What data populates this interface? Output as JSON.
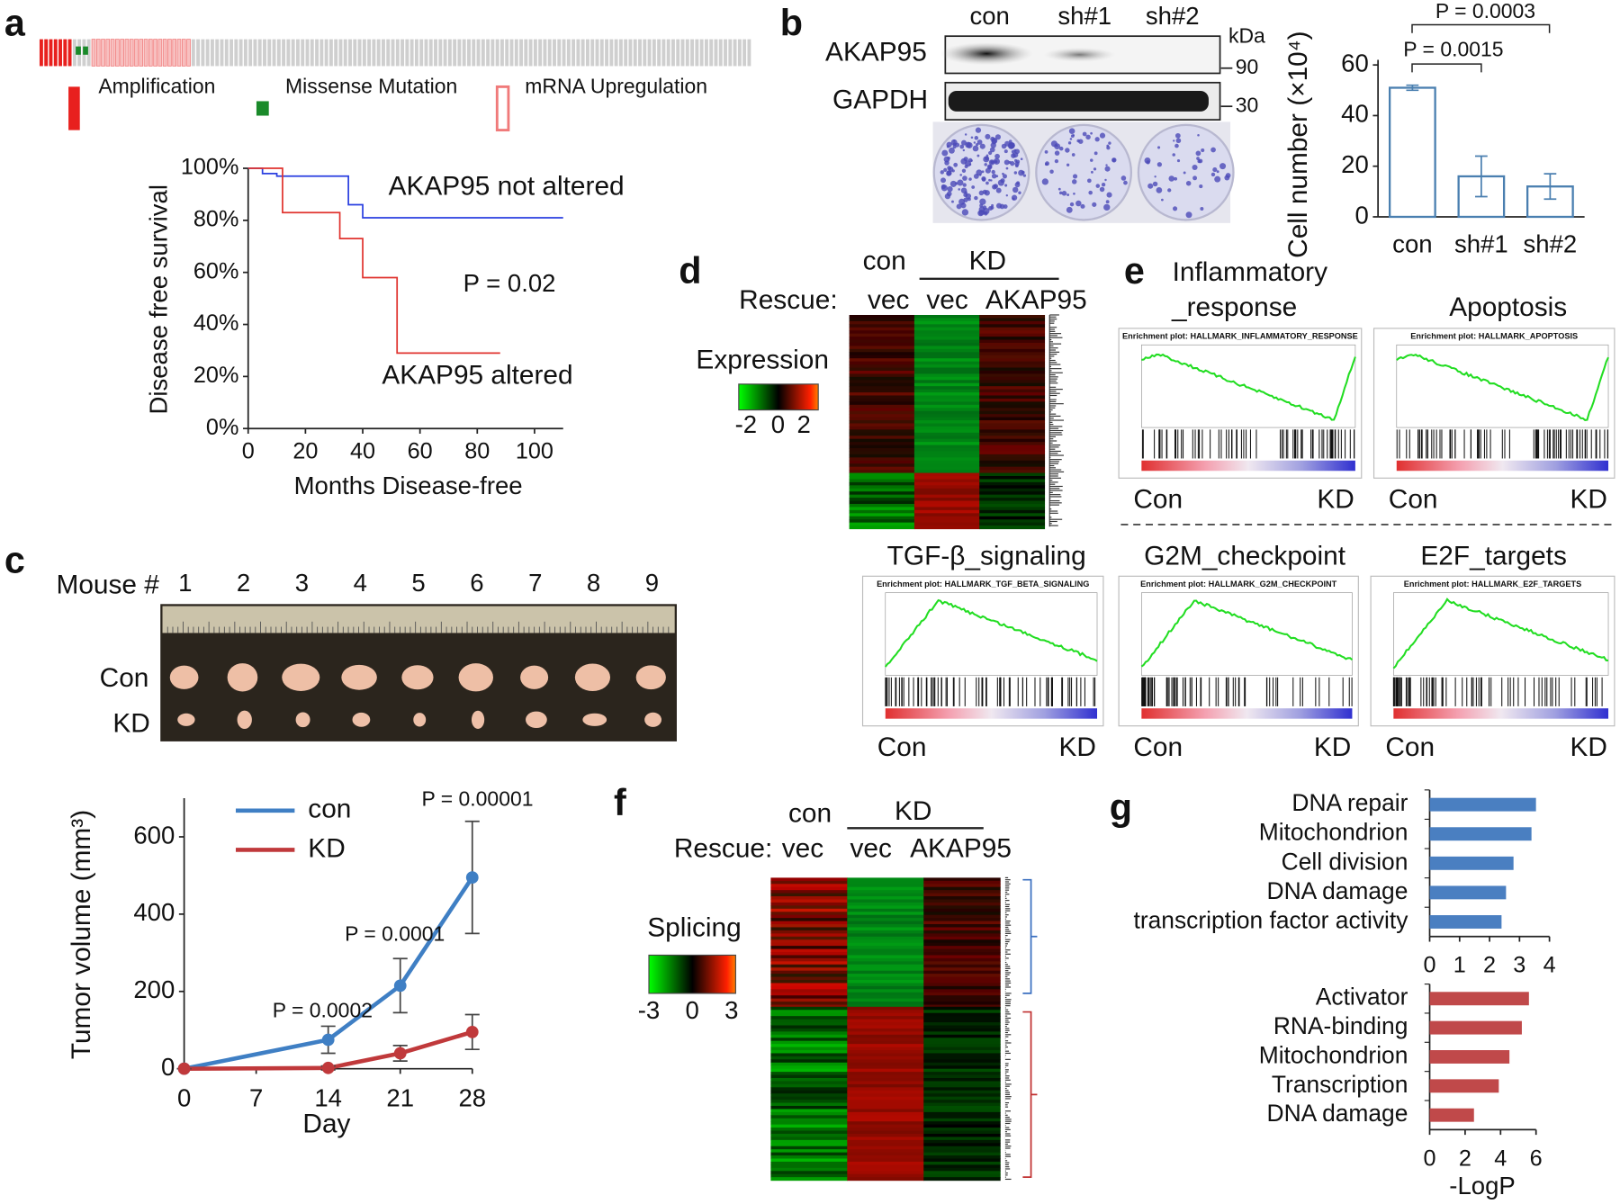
{
  "panel_labels": [
    "a",
    "b",
    "c",
    "d",
    "e",
    "f",
    "g"
  ],
  "panel_a": {
    "legend": [
      "Amplification",
      "Missense Mutation",
      "mRNA Upregulation"
    ]
  },
  "panel_b": {
    "lanes": [
      "con",
      "sh#1",
      "sh#2"
    ],
    "proteins": [
      "AKAP95",
      "GAPDH"
    ],
    "unit": "kDa",
    "markers": [
      "90",
      "30"
    ]
  },
  "panel_c": {
    "mouse_label": "Mouse #",
    "mice": [
      "1",
      "2",
      "3",
      "4",
      "5",
      "6",
      "7",
      "8",
      "9"
    ],
    "rows": [
      "Con",
      "KD"
    ]
  },
  "panel_d": {
    "group_con": "con",
    "group_kd": "KD",
    "rescue_label": "Rescue:",
    "columns": [
      "vec",
      "vec",
      "AKAP95"
    ],
    "scale_title": "Expression",
    "scale_ticks": [
      "-2",
      "0",
      "2"
    ]
  },
  "panel_e": {
    "plots": [
      {
        "title_lines": [
          "Inflammatory",
          "_response"
        ],
        "plot_title": "Enrichment plot: HALLMARK_INFLAMMATORY_RESPONSE",
        "left": "Con",
        "right": "KD"
      },
      {
        "title_lines": [
          "Apoptosis"
        ],
        "plot_title": "Enrichment plot: HALLMARK_APOPTOSIS",
        "left": "Con",
        "right": "KD"
      },
      {
        "title_lines": [
          "TGF-β_signaling"
        ],
        "plot_title": "Enrichment plot: HALLMARK_TGF_BETA_SIGNALING",
        "left": "Con",
        "right": "KD"
      },
      {
        "title_lines": [
          "G2M_checkpoint"
        ],
        "plot_title": "Enrichment plot: HALLMARK_G2M_CHECKPOINT",
        "left": "Con",
        "right": "KD"
      },
      {
        "title_lines": [
          "E2F_targets"
        ],
        "plot_title": "Enrichment plot: HALLMARK_E2F_TARGETS",
        "left": "Con",
        "right": "KD"
      }
    ]
  },
  "panel_f": {
    "group_con": "con",
    "group_kd": "KD",
    "rescue_label": "Rescue:",
    "columns": [
      "vec",
      "vec",
      "AKAP95"
    ],
    "scale_title": "Splicing",
    "scale_ticks": [
      "-3",
      "0",
      "3"
    ]
  },
  "chart_data": [
    {
      "type": "step",
      "xlabel": "Months Disease-free",
      "ylabel": "Disease free survival",
      "xlim": [
        0,
        110
      ],
      "xticks": [
        0,
        20,
        40,
        60,
        80,
        100
      ],
      "ylim": [
        0,
        100
      ],
      "yticks": [
        {
          "value": 0,
          "label": "0%"
        },
        {
          "value": 20,
          "label": "20%"
        },
        {
          "value": 40,
          "label": "40%"
        },
        {
          "value": 60,
          "label": "60%"
        },
        {
          "value": 80,
          "label": "80%"
        },
        {
          "value": 100,
          "label": "100%"
        }
      ],
      "annotations": [
        "P = 0.02"
      ],
      "series": [
        {
          "name": "AKAP95 not altered",
          "color": "#2a3fe0",
          "x": [
            0,
            5,
            10,
            35,
            40,
            110
          ],
          "values": [
            100,
            98,
            97,
            86,
            81,
            81
          ]
        },
        {
          "name": "AKAP95 altered",
          "color": "#e0332e",
          "x": [
            0,
            12,
            32,
            40,
            52,
            88
          ],
          "values": [
            100,
            83,
            73,
            58,
            29,
            29
          ]
        }
      ]
    },
    {
      "type": "bar",
      "ylabel": "Cell number (×10⁴)",
      "categories": [
        "con",
        "sh#1",
        "sh#2"
      ],
      "values": [
        51,
        16,
        12
      ],
      "errors": [
        1,
        8,
        5
      ],
      "color": "#4a7fb0",
      "ylim": [
        0,
        62
      ],
      "yticks": [
        0,
        20,
        40,
        60
      ],
      "annotations": [
        "P = 0.0015",
        "P = 0.0003"
      ]
    },
    {
      "type": "line",
      "xlabel": "Day",
      "ylabel": "Tumor volume (mm³)",
      "x": [
        0,
        14,
        21,
        28
      ],
      "xlim": [
        0,
        28
      ],
      "xticks": [
        0,
        7,
        14,
        21,
        28
      ],
      "ylim": [
        0,
        700
      ],
      "yticks": [
        0,
        200,
        400,
        600
      ],
      "series": [
        {
          "name": "con",
          "color": "#3f7fc4",
          "values": [
            0,
            75,
            215,
            495
          ],
          "errors": [
            0,
            35,
            70,
            145
          ]
        },
        {
          "name": "KD",
          "color": "#c0393b",
          "values": [
            0,
            2,
            40,
            95
          ],
          "errors": [
            0,
            5,
            20,
            45
          ]
        }
      ],
      "annotations": [
        "P = 0.0002",
        "P = 0.0001",
        "P = 0.00001"
      ]
    },
    {
      "type": "hbar",
      "categories": [
        "DNA repair",
        "Mitochondrion",
        "Cell division",
        "DNA damage",
        "transcription factor activity"
      ],
      "values": [
        3.55,
        3.4,
        2.8,
        2.55,
        2.4
      ],
      "color": "#4a7fc1",
      "xlim": [
        0,
        4
      ],
      "xticks": [
        0,
        1,
        2,
        3,
        4
      ]
    },
    {
      "type": "hbar",
      "xlabel": "-LogP",
      "categories": [
        "Activator",
        "RNA-binding",
        "Mitochondrion",
        "Transcription",
        "DNA damage"
      ],
      "values": [
        5.6,
        5.2,
        4.5,
        3.9,
        2.5
      ],
      "color": "#c0494a",
      "xlim": [
        0,
        6
      ],
      "xticks": [
        0,
        2,
        4,
        6
      ]
    }
  ]
}
